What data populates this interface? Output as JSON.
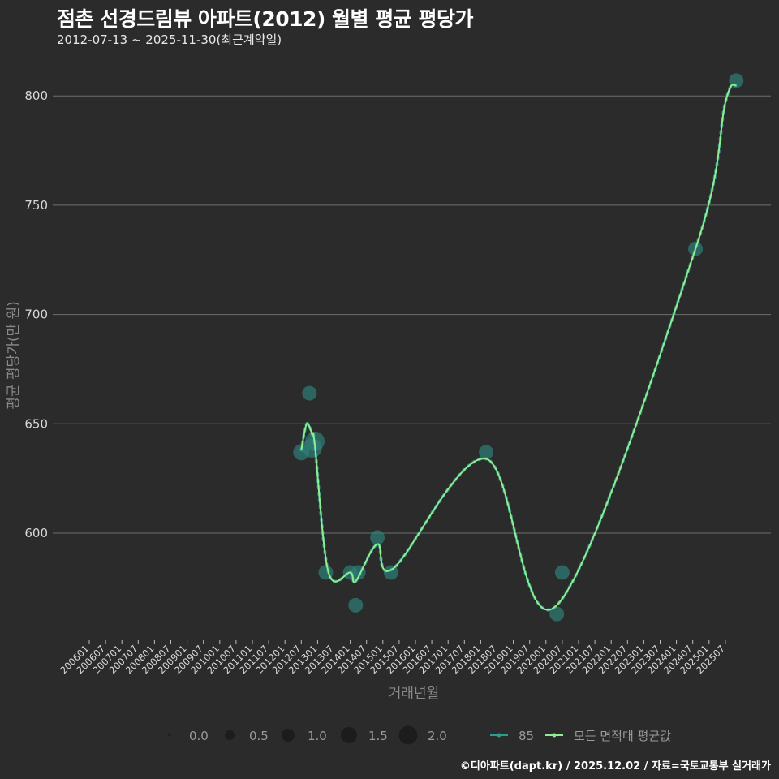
{
  "header": {
    "title": "점촌 선경드림뷰 아파트(2012) 월별 평균 평당가",
    "subtitle": "2012-07-13 ~ 2025-11-30(최근계약일)"
  },
  "footer": "©디아파트(dapt.kr) / 2025.12.02 / 자료=국토교통부 실거래가",
  "colors": {
    "background": "#2b2b2b",
    "grid": "#6e6e6e",
    "series_85": "#2a9d8f",
    "avg_line": "#90ee90",
    "point_fill": "#2f7f78"
  },
  "chart_data": {
    "type": "line",
    "title": "점촌 선경드림뷰 아파트(2012) 월별 평균 평당가",
    "subtitle": "2012-07-13 ~ 2025-11-30(최근계약일)",
    "xlabel": "거래년월",
    "ylabel": "평균 평당가(만 원)",
    "ylim": [
      548,
      812
    ],
    "yticks": [
      600,
      650,
      700,
      750,
      800
    ],
    "xticks": [
      "200601",
      "200607",
      "200701",
      "200707",
      "200801",
      "200807",
      "200901",
      "200907",
      "201001",
      "201007",
      "201101",
      "201107",
      "201201",
      "201207",
      "201301",
      "201307",
      "201401",
      "201407",
      "201501",
      "201507",
      "201601",
      "201607",
      "201701",
      "201707",
      "201801",
      "201807",
      "201901",
      "201907",
      "202001",
      "202007",
      "202101",
      "202107",
      "202201",
      "202207",
      "202301",
      "202307",
      "202401",
      "202407",
      "202501",
      "202507"
    ],
    "grid": true,
    "legend_position": "bottom",
    "size_legend": {
      "title": "",
      "values": [
        "0.0",
        "0.5",
        "1.0",
        "1.5",
        "2.0"
      ]
    },
    "series": [
      {
        "name": "85",
        "type": "scatter",
        "points": [
          {
            "x": "201207",
            "y": 637,
            "size": 1.2
          },
          {
            "x": "201210",
            "y": 664,
            "size": 1.0
          },
          {
            "x": "201211",
            "y": 639,
            "size": 1.6
          },
          {
            "x": "201212",
            "y": 642,
            "size": 1.6
          },
          {
            "x": "201304",
            "y": 582,
            "size": 1.0
          },
          {
            "x": "201401",
            "y": 582,
            "size": 1.0
          },
          {
            "x": "201403",
            "y": 567,
            "size": 1.0
          },
          {
            "x": "201404",
            "y": 582,
            "size": 1.0
          },
          {
            "x": "201411",
            "y": 598,
            "size": 1.0
          },
          {
            "x": "201504",
            "y": 582,
            "size": 1.0
          },
          {
            "x": "201803",
            "y": 637,
            "size": 1.0
          },
          {
            "x": "202005",
            "y": 563,
            "size": 1.0
          },
          {
            "x": "202007",
            "y": 582,
            "size": 1.0
          },
          {
            "x": "202408",
            "y": 730,
            "size": 1.0
          },
          {
            "x": "202511",
            "y": 807,
            "size": 1.0
          }
        ]
      },
      {
        "name": "모든 면적대 평균값",
        "type": "line",
        "points": [
          {
            "x": "201207",
            "y": 638
          },
          {
            "x": "201209",
            "y": 650
          },
          {
            "x": "201211",
            "y": 645
          },
          {
            "x": "201212",
            "y": 640
          },
          {
            "x": "201305",
            "y": 582
          },
          {
            "x": "201401",
            "y": 582
          },
          {
            "x": "201403",
            "y": 578
          },
          {
            "x": "201411",
            "y": 595
          },
          {
            "x": "201505",
            "y": 584
          },
          {
            "x": "201803",
            "y": 634
          },
          {
            "x": "202005",
            "y": 567
          },
          {
            "x": "202408",
            "y": 730
          },
          {
            "x": "202507",
            "y": 797
          },
          {
            "x": "202511",
            "y": 805
          }
        ]
      }
    ]
  },
  "legend": {
    "sizes": [
      "0.0",
      "0.5",
      "1.0",
      "1.5",
      "2.0"
    ],
    "series": [
      {
        "label": "85",
        "color": "#2a9d8f"
      },
      {
        "label": "모든 면적대 평균값",
        "color": "#90ee90"
      }
    ]
  }
}
